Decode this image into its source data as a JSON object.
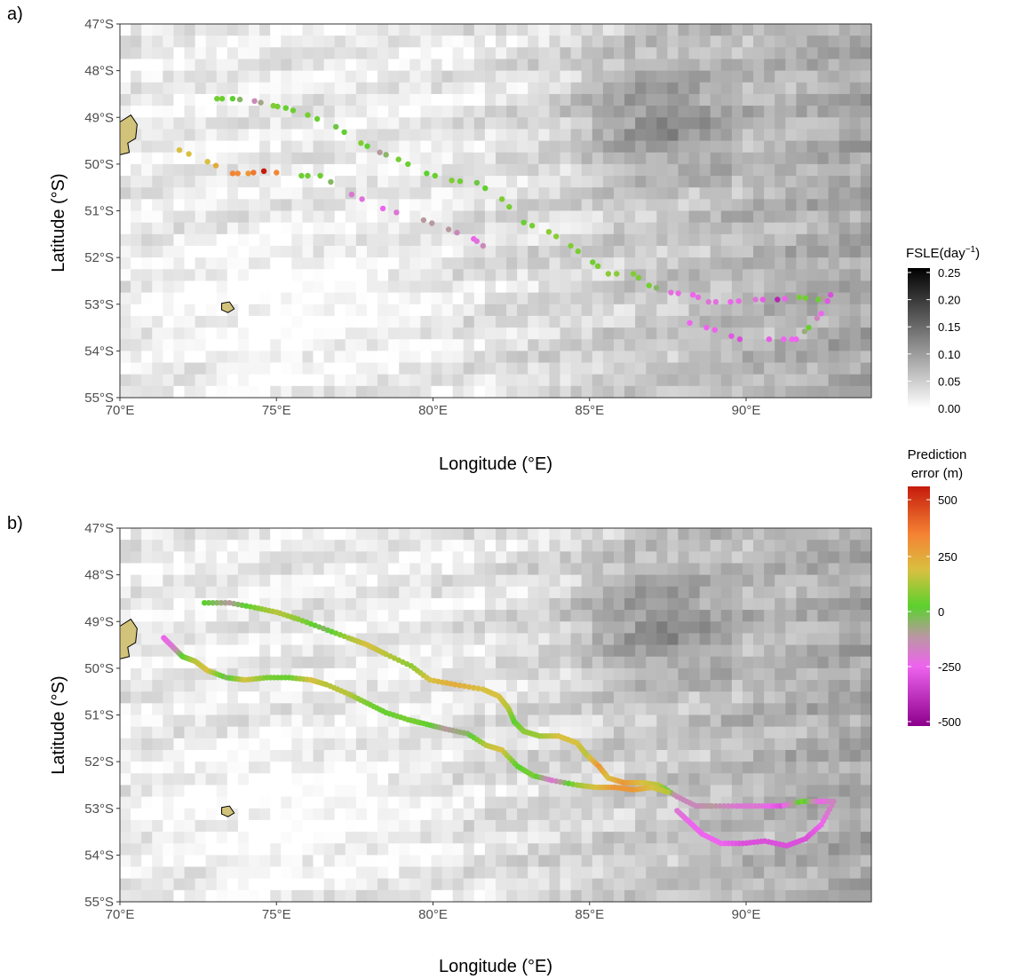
{
  "chart_data": [
    {
      "panel_label": "a)",
      "type": "scatter",
      "xlabel": "Longitude (°E)",
      "ylabel": "Latitude (°S)",
      "xlim": [
        70,
        94
      ],
      "ylim": [
        47,
        55
      ],
      "xticks": [
        {
          "v": 70,
          "label": "70°E"
        },
        {
          "v": 75,
          "label": "75°E"
        },
        {
          "v": 80,
          "label": "80°E"
        },
        {
          "v": 85,
          "label": "85°E"
        },
        {
          "v": 90,
          "label": "90°E"
        }
      ],
      "yticks": [
        {
          "v": 47,
          "label": "47°S"
        },
        {
          "v": 48,
          "label": "48°S"
        },
        {
          "v": 49,
          "label": "49°S"
        },
        {
          "v": 50,
          "label": "50°S"
        },
        {
          "v": 51,
          "label": "51°S"
        },
        {
          "v": 52,
          "label": "52°S"
        },
        {
          "v": 53,
          "label": "53°S"
        },
        {
          "v": 54,
          "label": "54°S"
        },
        {
          "v": 55,
          "label": "55°S"
        }
      ],
      "tracks": [
        {
          "points": [
            [
              73.1,
              48.6,
              40
            ],
            [
              73.6,
              48.6,
              0
            ],
            [
              74.3,
              48.65,
              -150
            ],
            [
              74.9,
              48.75,
              60
            ],
            [
              75.3,
              48.8,
              20
            ],
            [
              76.0,
              48.95,
              40
            ],
            [
              76.9,
              49.2,
              -20
            ],
            [
              77.7,
              49.55,
              60
            ],
            [
              78.3,
              49.75,
              -100
            ],
            [
              78.9,
              49.9,
              40
            ],
            [
              79.8,
              50.2,
              0
            ],
            [
              80.6,
              50.35,
              60
            ],
            [
              81.4,
              50.4,
              -20
            ],
            [
              82.2,
              50.75,
              60
            ],
            [
              82.9,
              51.25,
              20
            ],
            [
              83.7,
              51.45,
              80
            ],
            [
              84.4,
              51.75,
              60
            ],
            [
              85.1,
              52.1,
              30
            ],
            [
              85.6,
              52.35,
              80
            ],
            [
              86.4,
              52.35,
              60
            ],
            [
              86.9,
              52.6,
              40
            ],
            [
              87.6,
              52.75,
              -220
            ],
            [
              88.3,
              52.8,
              -250
            ],
            [
              88.8,
              52.95,
              -200
            ],
            [
              89.5,
              52.95,
              -250
            ],
            [
              90.3,
              52.9,
              -200
            ],
            [
              91.0,
              52.9,
              -400
            ],
            [
              91.7,
              52.85,
              40
            ],
            [
              92.3,
              52.9,
              20
            ],
            [
              92.7,
              52.8,
              -300
            ],
            [
              92.4,
              53.2,
              -250
            ],
            [
              92.0,
              53.5,
              20
            ],
            [
              91.6,
              53.75,
              -250
            ],
            [
              91.2,
              53.75,
              -250
            ],
            [
              89.8,
              53.75,
              -300
            ],
            [
              89.0,
              53.55,
              -250
            ],
            [
              88.2,
              53.4,
              -250
            ]
          ]
        },
        {
          "points": [
            [
              71.9,
              49.7,
              200
            ],
            [
              72.8,
              49.95,
              200
            ],
            [
              73.6,
              50.2,
              350
            ],
            [
              74.1,
              50.2,
              300
            ],
            [
              74.6,
              50.15,
              500
            ],
            [
              75.8,
              50.25,
              30
            ],
            [
              76.4,
              50.25,
              30
            ],
            [
              77.4,
              50.65,
              -200
            ],
            [
              78.4,
              50.95,
              -250
            ],
            [
              79.7,
              51.2,
              -100
            ],
            [
              80.5,
              51.4,
              -100
            ],
            [
              81.3,
              51.6,
              -250
            ],
            [
              81.6,
              51.75,
              -150
            ]
          ]
        }
      ]
    },
    {
      "panel_label": "b)",
      "type": "scatter",
      "xlabel": "Longitude (°E)",
      "ylabel": "Latitude (°S)",
      "xlim": [
        70,
        94
      ],
      "ylim": [
        47,
        55
      ],
      "xticks": [
        {
          "v": 70,
          "label": "70°E"
        },
        {
          "v": 75,
          "label": "75°E"
        },
        {
          "v": 80,
          "label": "80°E"
        },
        {
          "v": 85,
          "label": "85°E"
        },
        {
          "v": 90,
          "label": "90°E"
        }
      ],
      "yticks": [
        {
          "v": 47,
          "label": "47°S"
        },
        {
          "v": 48,
          "label": "48°S"
        },
        {
          "v": 49,
          "label": "49°S"
        },
        {
          "v": 50,
          "label": "50°S"
        },
        {
          "v": 51,
          "label": "51°S"
        },
        {
          "v": 52,
          "label": "52°S"
        },
        {
          "v": 53,
          "label": "53°S"
        },
        {
          "v": 54,
          "label": "54°S"
        },
        {
          "v": 55,
          "label": "55°S"
        }
      ],
      "tracks": [
        {
          "points": [
            [
              72.7,
              48.6,
              0
            ],
            [
              73.5,
              48.6,
              -100
            ],
            [
              74.3,
              48.7,
              50
            ],
            [
              75.0,
              48.8,
              150
            ],
            [
              75.7,
              48.95,
              80
            ],
            [
              76.5,
              49.15,
              -50
            ],
            [
              77.3,
              49.35,
              120
            ],
            [
              77.9,
              49.5,
              200
            ],
            [
              78.5,
              49.7,
              150
            ],
            [
              79.3,
              49.95,
              80
            ],
            [
              79.9,
              50.25,
              200
            ],
            [
              80.7,
              50.35,
              250
            ],
            [
              81.6,
              50.45,
              200
            ],
            [
              82.1,
              50.6,
              200
            ],
            [
              82.4,
              50.85,
              150
            ],
            [
              82.6,
              51.15,
              0
            ],
            [
              82.9,
              51.35,
              80
            ],
            [
              83.4,
              51.45,
              100
            ],
            [
              84.0,
              51.45,
              200
            ],
            [
              84.6,
              51.6,
              200
            ],
            [
              84.9,
              51.85,
              150
            ],
            [
              85.3,
              52.1,
              300
            ],
            [
              85.6,
              52.35,
              200
            ],
            [
              86.1,
              52.45,
              300
            ],
            [
              86.7,
              52.45,
              200
            ],
            [
              87.2,
              52.5,
              150
            ],
            [
              87.8,
              52.75,
              -150
            ],
            [
              88.4,
              52.95,
              -150
            ],
            [
              88.9,
              52.95,
              -100
            ],
            [
              89.7,
              52.95,
              -200
            ],
            [
              90.4,
              52.95,
              -200
            ],
            [
              91.1,
              52.95,
              -300
            ],
            [
              91.8,
              52.85,
              50
            ],
            [
              92.4,
              52.85,
              -250
            ],
            [
              92.8,
              52.85,
              -150
            ],
            [
              92.4,
              53.35,
              -250
            ],
            [
              91.9,
              53.65,
              -300
            ],
            [
              91.3,
              53.8,
              -300
            ],
            [
              90.6,
              53.7,
              -300
            ],
            [
              89.9,
              53.75,
              -300
            ],
            [
              89.2,
              53.75,
              -250
            ],
            [
              88.6,
              53.55,
              -250
            ],
            [
              88.2,
              53.3,
              -250
            ],
            [
              87.8,
              53.05,
              -200
            ]
          ]
        },
        {
          "points": [
            [
              71.4,
              49.35,
              -250
            ],
            [
              71.7,
              49.55,
              -200
            ],
            [
              72.0,
              49.75,
              0
            ],
            [
              72.4,
              49.85,
              150
            ],
            [
              72.8,
              50.05,
              200
            ],
            [
              73.4,
              50.2,
              -50
            ],
            [
              74.0,
              50.25,
              200
            ],
            [
              74.7,
              50.2,
              50
            ],
            [
              75.4,
              50.2,
              20
            ],
            [
              76.1,
              50.25,
              200
            ],
            [
              76.6,
              50.35,
              150
            ],
            [
              77.3,
              50.55,
              150
            ],
            [
              77.9,
              50.75,
              50
            ],
            [
              78.5,
              50.95,
              20
            ],
            [
              79.2,
              51.1,
              50
            ],
            [
              79.8,
              51.2,
              20
            ],
            [
              80.4,
              51.3,
              -100
            ],
            [
              81.1,
              51.4,
              -50
            ],
            [
              81.7,
              51.65,
              150
            ],
            [
              82.2,
              51.75,
              200
            ],
            [
              82.7,
              52.1,
              0
            ],
            [
              83.2,
              52.3,
              50
            ],
            [
              83.8,
              52.4,
              -200
            ],
            [
              84.6,
              52.5,
              100
            ],
            [
              85.2,
              52.55,
              200
            ],
            [
              85.8,
              52.55,
              300
            ],
            [
              86.4,
              52.6,
              300
            ],
            [
              87.0,
              52.55,
              200
            ],
            [
              87.5,
              52.65,
              150
            ]
          ]
        }
      ]
    }
  ],
  "legend_fsle": {
    "title": "FSLE(day",
    "title_sup": "−1",
    "title_end": ")",
    "ticks": [
      "0.25",
      "0.20",
      "0.15",
      "0.10",
      "0.05",
      "0.00"
    ],
    "colors": [
      "#000000",
      "#ffffff"
    ]
  },
  "legend_error": {
    "title_line1": "Prediction",
    "title_line2": "error (m)",
    "ticks": [
      "500",
      "250",
      "0",
      "-250",
      "-500"
    ],
    "colors": [
      "#c51b0c",
      "#f58334",
      "#d8c040",
      "#5bd12e",
      "#b69a9e",
      "#ee64ee",
      "#8c008c"
    ]
  },
  "colors": {
    "island_fill": "#d2c37a",
    "panel_border": "#333333"
  }
}
